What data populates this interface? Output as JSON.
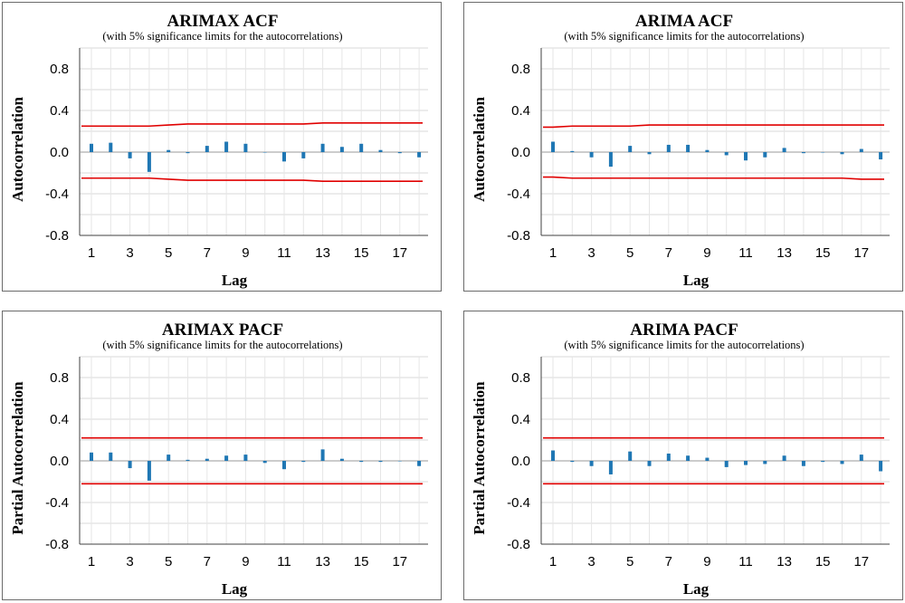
{
  "chart_data": [
    {
      "type": "bar",
      "title": "ARIMAX ACF",
      "subtitle": "(with 5% significance limits  for the autocorrelations)",
      "xlabel": "Lag",
      "ylabel": "Autocorrelation",
      "ylim": [
        -0.8,
        1.0
      ],
      "yticks": [
        -0.8,
        -0.4,
        0.0,
        0.4,
        0.8
      ],
      "ytick_labels": [
        "-0.8",
        "-0.4",
        "0.0",
        "0.4",
        "0.8"
      ],
      "xtick_labels": [
        "1",
        "3",
        "5",
        "7",
        "9",
        "11",
        "13",
        "15",
        "17"
      ],
      "grid": true,
      "bar_color": "#1f77b4",
      "limit_color": "#e00000",
      "x": [
        1,
        2,
        3,
        4,
        5,
        6,
        7,
        8,
        9,
        10,
        11,
        12,
        13,
        14,
        15,
        16,
        17,
        18
      ],
      "values": [
        0.08,
        0.09,
        -0.06,
        -0.19,
        0.02,
        -0.01,
        0.06,
        0.1,
        0.08,
        0.0,
        -0.09,
        -0.06,
        0.08,
        0.05,
        0.08,
        0.02,
        -0.01,
        -0.05
      ],
      "upper_limit": [
        0.25,
        0.25,
        0.25,
        0.25,
        0.26,
        0.27,
        0.27,
        0.27,
        0.27,
        0.27,
        0.27,
        0.27,
        0.28,
        0.28,
        0.28,
        0.28,
        0.28,
        0.28
      ],
      "lower_limit": [
        -0.25,
        -0.25,
        -0.25,
        -0.25,
        -0.26,
        -0.27,
        -0.27,
        -0.27,
        -0.27,
        -0.27,
        -0.27,
        -0.27,
        -0.28,
        -0.28,
        -0.28,
        -0.28,
        -0.28,
        -0.28
      ]
    },
    {
      "type": "bar",
      "title": "ARIMA ACF",
      "subtitle": "(with 5% significance limits  for the autocorrelations)",
      "xlabel": "Lag",
      "ylabel": "Autocorrelation",
      "ylim": [
        -0.8,
        1.0
      ],
      "yticks": [
        -0.8,
        -0.4,
        0.0,
        0.4,
        0.8
      ],
      "ytick_labels": [
        "-0.8",
        "-0.4",
        "0.0",
        "0.4",
        "0.8"
      ],
      "xtick_labels": [
        "1",
        "3",
        "5",
        "7",
        "9",
        "11",
        "13",
        "15",
        "17"
      ],
      "grid": true,
      "bar_color": "#1f77b4",
      "limit_color": "#e00000",
      "x": [
        1,
        2,
        3,
        4,
        5,
        6,
        7,
        8,
        9,
        10,
        11,
        12,
        13,
        14,
        15,
        16,
        17,
        18
      ],
      "values": [
        0.1,
        0.01,
        -0.05,
        -0.14,
        0.06,
        -0.02,
        0.07,
        0.07,
        0.02,
        -0.03,
        -0.08,
        -0.05,
        0.04,
        -0.01,
        0.0,
        -0.02,
        0.03,
        -0.07
      ],
      "upper_limit": [
        0.24,
        0.25,
        0.25,
        0.25,
        0.25,
        0.26,
        0.26,
        0.26,
        0.26,
        0.26,
        0.26,
        0.26,
        0.26,
        0.26,
        0.26,
        0.26,
        0.26,
        0.26
      ],
      "lower_limit": [
        -0.24,
        -0.25,
        -0.25,
        -0.25,
        -0.25,
        -0.25,
        -0.25,
        -0.25,
        -0.25,
        -0.25,
        -0.25,
        -0.25,
        -0.25,
        -0.25,
        -0.25,
        -0.25,
        -0.26,
        -0.26
      ]
    },
    {
      "type": "bar",
      "title": "ARIMAX PACF",
      "subtitle": "(with 5% significance limits  for the autocorrelations)",
      "xlabel": "Lag",
      "ylabel": "Partial Autocorrelation",
      "ylim": [
        -0.8,
        1.0
      ],
      "yticks": [
        -0.8,
        -0.4,
        0.0,
        0.4,
        0.8
      ],
      "ytick_labels": [
        "-0.8",
        "-0.4",
        "0.0",
        "0.4",
        "0.8"
      ],
      "xtick_labels": [
        "1",
        "3",
        "5",
        "7",
        "9",
        "11",
        "13",
        "15",
        "17"
      ],
      "grid": true,
      "bar_color": "#1f77b4",
      "limit_color": "#e00000",
      "x": [
        1,
        2,
        3,
        4,
        5,
        6,
        7,
        8,
        9,
        10,
        11,
        12,
        13,
        14,
        15,
        16,
        17,
        18
      ],
      "values": [
        0.08,
        0.08,
        -0.07,
        -0.19,
        0.06,
        0.01,
        0.02,
        0.05,
        0.06,
        -0.02,
        -0.08,
        -0.01,
        0.11,
        0.02,
        -0.01,
        -0.01,
        0.0,
        -0.05
      ],
      "upper_limit": [
        0.22,
        0.22,
        0.22,
        0.22,
        0.22,
        0.22,
        0.22,
        0.22,
        0.22,
        0.22,
        0.22,
        0.22,
        0.22,
        0.22,
        0.22,
        0.22,
        0.22,
        0.22
      ],
      "lower_limit": [
        -0.22,
        -0.22,
        -0.22,
        -0.22,
        -0.22,
        -0.22,
        -0.22,
        -0.22,
        -0.22,
        -0.22,
        -0.22,
        -0.22,
        -0.22,
        -0.22,
        -0.22,
        -0.22,
        -0.22,
        -0.22
      ]
    },
    {
      "type": "bar",
      "title": "ARIMA PACF",
      "subtitle": "(with 5% significance limits  for the autocorrelations)",
      "xlabel": "Lag",
      "ylabel": "Partial Autocorrelation",
      "ylim": [
        -0.8,
        1.0
      ],
      "yticks": [
        -0.8,
        -0.4,
        0.0,
        0.4,
        0.8
      ],
      "ytick_labels": [
        "-0.8",
        "-0.4",
        "0.0",
        "0.4",
        "0.8"
      ],
      "xtick_labels": [
        "1",
        "3",
        "5",
        "7",
        "9",
        "11",
        "13",
        "15",
        "17"
      ],
      "grid": true,
      "bar_color": "#1f77b4",
      "limit_color": "#e00000",
      "x": [
        1,
        2,
        3,
        4,
        5,
        6,
        7,
        8,
        9,
        10,
        11,
        12,
        13,
        14,
        15,
        16,
        17,
        18
      ],
      "values": [
        0.1,
        -0.01,
        -0.05,
        -0.13,
        0.09,
        -0.05,
        0.07,
        0.05,
        0.03,
        -0.06,
        -0.04,
        -0.03,
        0.05,
        -0.05,
        -0.01,
        -0.03,
        0.06,
        -0.1
      ],
      "upper_limit": [
        0.22,
        0.22,
        0.22,
        0.22,
        0.22,
        0.22,
        0.22,
        0.22,
        0.22,
        0.22,
        0.22,
        0.22,
        0.22,
        0.22,
        0.22,
        0.22,
        0.22,
        0.22
      ],
      "lower_limit": [
        -0.22,
        -0.22,
        -0.22,
        -0.22,
        -0.22,
        -0.22,
        -0.22,
        -0.22,
        -0.22,
        -0.22,
        -0.22,
        -0.22,
        -0.22,
        -0.22,
        -0.22,
        -0.22,
        -0.22,
        -0.22
      ]
    }
  ]
}
